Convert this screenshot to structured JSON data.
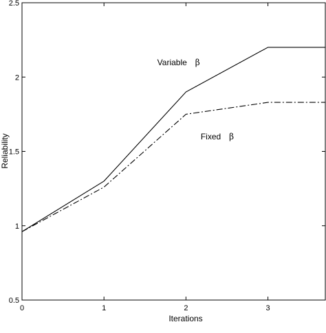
{
  "chart_data": {
    "type": "line",
    "title": "",
    "xlabel": "Iterations",
    "ylabel": "Reliability",
    "xlim": [
      0,
      3.7
    ],
    "ylim": [
      0.5,
      2.5
    ],
    "xticks": [
      0,
      1,
      2,
      3
    ],
    "yticks": [
      0.5,
      1,
      1.5,
      2,
      2.5
    ],
    "xtick_labels": [
      "0",
      "1",
      "2",
      "3"
    ],
    "ytick_labels": [
      "0.5",
      "1",
      "1.5",
      "2",
      "2.5"
    ],
    "grid": false,
    "series": [
      {
        "style": "solid",
        "color": "#000000",
        "x": [
          0,
          1,
          2,
          3,
          3.7
        ],
        "y": [
          0.96,
          1.3,
          1.9,
          2.2,
          2.2
        ]
      },
      {
        "style": "dash-dot",
        "color": "#000000",
        "x": [
          0,
          1,
          2,
          3,
          3.7
        ],
        "y": [
          0.96,
          1.26,
          1.75,
          1.83,
          1.83
        ]
      }
    ],
    "annotations": [
      {
        "label": "Variable",
        "symbol": "β",
        "x": 1.65,
        "y": 2.08
      },
      {
        "label": "Fixed",
        "symbol": "β",
        "x": 2.18,
        "y": 1.58
      }
    ]
  }
}
